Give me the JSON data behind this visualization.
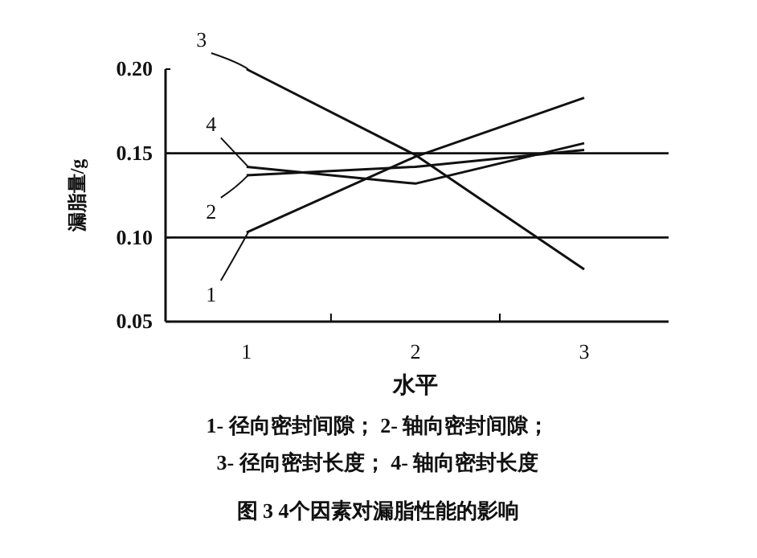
{
  "chart_data": {
    "type": "line",
    "x": [
      1,
      2,
      3
    ],
    "series": [
      {
        "name": "1",
        "color": "#111111",
        "values": [
          0.103,
          0.148,
          0.183
        ]
      },
      {
        "name": "2",
        "color": "#111111",
        "values": [
          0.137,
          0.142,
          0.152
        ]
      },
      {
        "name": "3",
        "color": "#111111",
        "values": [
          0.2,
          0.149,
          0.081
        ]
      },
      {
        "name": "4",
        "color": "#111111",
        "values": [
          0.142,
          0.132,
          0.156
        ]
      }
    ],
    "xlabel": "水平",
    "ylabel": "漏脂量/g",
    "xlim": [
      0.52,
      3.5
    ],
    "xticks": [
      1,
      {
        "value": 1.5,
        "label": null
      },
      2,
      {
        "value": 2.5,
        "label": null
      },
      3
    ],
    "ylim": [
      0.05,
      0.2
    ],
    "yticks": [
      0.05,
      {
        "value": 0.1,
        "label": "0.10"
      },
      0.15,
      {
        "value": 0.2,
        "label": "0.20"
      }
    ],
    "ref_lines": [
      {
        "axis": "y",
        "value": 0.1
      },
      {
        "axis": "y",
        "value": 0.15
      }
    ],
    "marker": "none",
    "line_style": "solid",
    "legend": "left",
    "annotations": [
      "1- 径向密封间隙； 2- 轴向密封间隙；",
      "3- 径向密封长度； 4- 轴向密封长度",
      "图 3  4个因素对漏脂性能的影响"
    ]
  }
}
